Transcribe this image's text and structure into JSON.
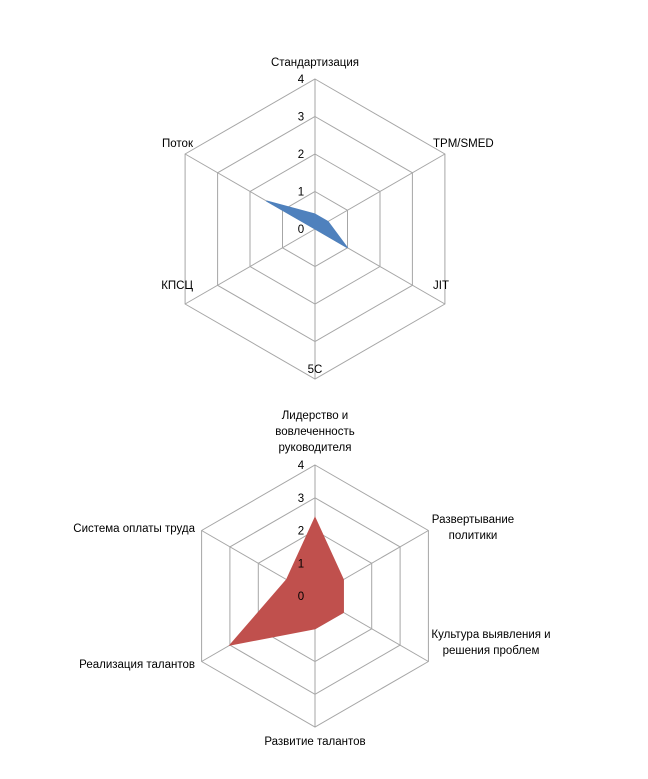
{
  "chart_data": [
    {
      "type": "radar",
      "axes": [
        "Стандартизация",
        "TPM/SMED",
        "JIT",
        "5С",
        "КПСЦ",
        "Поток"
      ],
      "values": [
        0.4,
        0.4,
        1.0,
        0.0,
        0.0,
        1.5
      ],
      "rlim": [
        0,
        4
      ],
      "ticks": [
        "0",
        "1",
        "2",
        "3",
        "4"
      ],
      "grid": true,
      "color": "#4f81bd"
    },
    {
      "type": "radar",
      "axes": [
        "Лидерство и вовлеченность руководителя",
        "Развертывание политики",
        "Культура выявления и решения проблем",
        "Развитие талантов",
        "Реализация талантов",
        "Система оплаты труда"
      ],
      "axis_label_lines": [
        [
          "Лидерство и",
          "вовлеченность",
          "руководителя"
        ],
        [
          "Развертывание",
          "политики"
        ],
        [
          "Культура выявления и",
          "решения проблем"
        ],
        [
          "Развитие талантов"
        ],
        [
          "Реализация талантов"
        ],
        [
          "Система оплаты труда"
        ]
      ],
      "values": [
        2.4,
        1.0,
        1.0,
        1.0,
        3.0,
        1.0
      ],
      "rlim": [
        0,
        4
      ],
      "ticks": [
        "0",
        "1",
        "2",
        "3",
        "4"
      ],
      "grid": true,
      "color": "#c0504d"
    }
  ]
}
